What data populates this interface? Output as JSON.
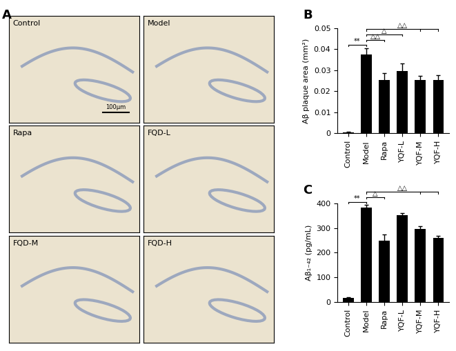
{
  "images": {
    "panel_label": "A",
    "labels": [
      "Control",
      "Model",
      "Rapa",
      "FQD-L",
      "FQD-M",
      "FQD-H"
    ],
    "scale_bar": "100μm"
  },
  "chart_data": [
    {
      "type": "bar",
      "panel_label": "B",
      "categories": [
        "Control",
        "Model",
        "Rapa",
        "YQF-L",
        "YQF-M",
        "YQF-H"
      ],
      "values": [
        0.0005,
        0.0375,
        0.0255,
        0.0297,
        0.0253,
        0.0252
      ],
      "errors": [
        0.0002,
        0.003,
        0.003,
        0.0035,
        0.002,
        0.0023
      ],
      "color": "#000000",
      "ylabel": "Aβ plaque area (mm²)",
      "ylim": [
        0,
        0.05
      ],
      "yticks": [
        0,
        0.01,
        0.02,
        0.03,
        0.04,
        0.05
      ],
      "annotations": [
        {
          "text": "**",
          "categories": [
            "Control",
            "Model"
          ]
        },
        {
          "text": "△△",
          "categories": [
            "Model",
            "Rapa"
          ]
        },
        {
          "text": "△",
          "categories": [
            "Model",
            "YQF-L"
          ]
        },
        {
          "text": "△△",
          "categories": [
            "Model",
            "YQF-M",
            "YQF-H"
          ]
        }
      ]
    },
    {
      "type": "bar",
      "panel_label": "C",
      "categories": [
        "Control",
        "Model",
        "Rapa",
        "YQF-L",
        "YQF-M",
        "YQF-H"
      ],
      "values": [
        15,
        385,
        250,
        352,
        297,
        260
      ],
      "errors": [
        3,
        10,
        25,
        10,
        10,
        8
      ],
      "color": "#000000",
      "ylabel": "Aβ₁₋₄₂ (pg/mL)",
      "ylim": [
        0,
        400
      ],
      "yticks": [
        0,
        100,
        200,
        300,
        400
      ],
      "annotations": [
        {
          "text": "**",
          "categories": [
            "Control",
            "Model"
          ]
        },
        {
          "text": "△",
          "categories": [
            "Model",
            "Rapa"
          ]
        },
        {
          "text": "△△",
          "categories": [
            "Model",
            "YQF-M",
            "YQF-H"
          ]
        }
      ]
    }
  ]
}
